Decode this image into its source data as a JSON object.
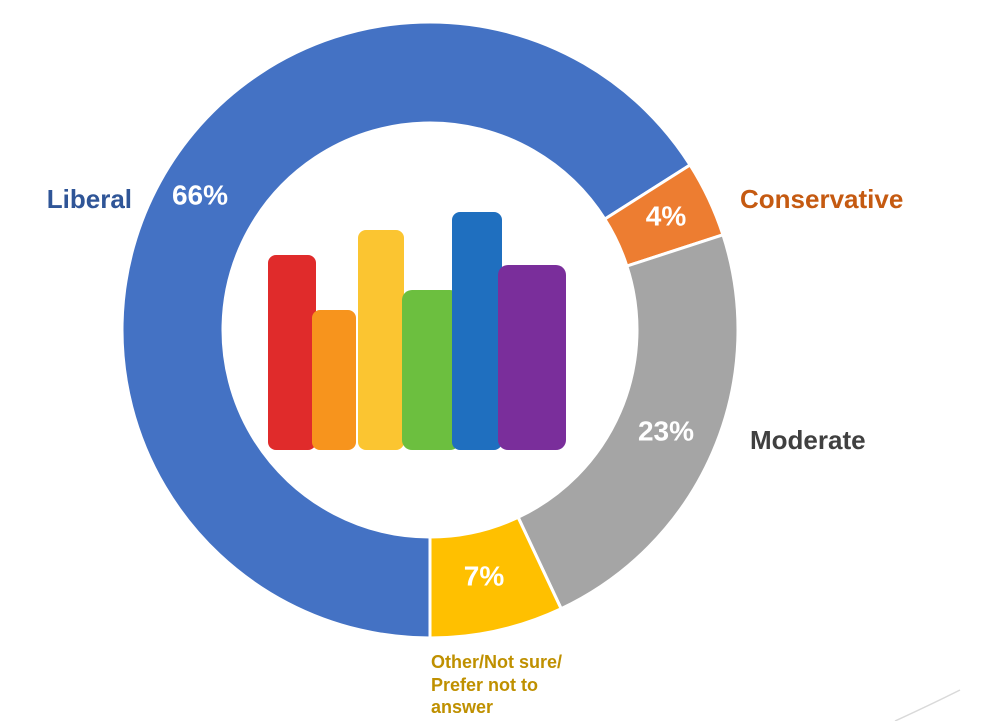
{
  "chart_data": {
    "type": "donut",
    "series": [
      {
        "name": "Liberal",
        "color": "#4472c4",
        "label_color": "#2f5597",
        "values": [
          66
        ],
        "value_labels": [
          "66%"
        ]
      },
      {
        "name": "Conservative",
        "color": "#ed7d31",
        "label_color": "#c55a11",
        "values": [
          4
        ],
        "value_labels": [
          "4%"
        ]
      },
      {
        "name": "Moderate",
        "color": "#a5a5a5",
        "label_color": "#404040",
        "values": [
          23
        ],
        "value_labels": [
          "23%"
        ]
      },
      {
        "name": "Other/Not sure/ Prefer not to answer",
        "color": "#ffc000",
        "label_color": "#bf9000",
        "values": [
          7
        ],
        "value_labels": [
          "7%"
        ]
      }
    ]
  }
}
